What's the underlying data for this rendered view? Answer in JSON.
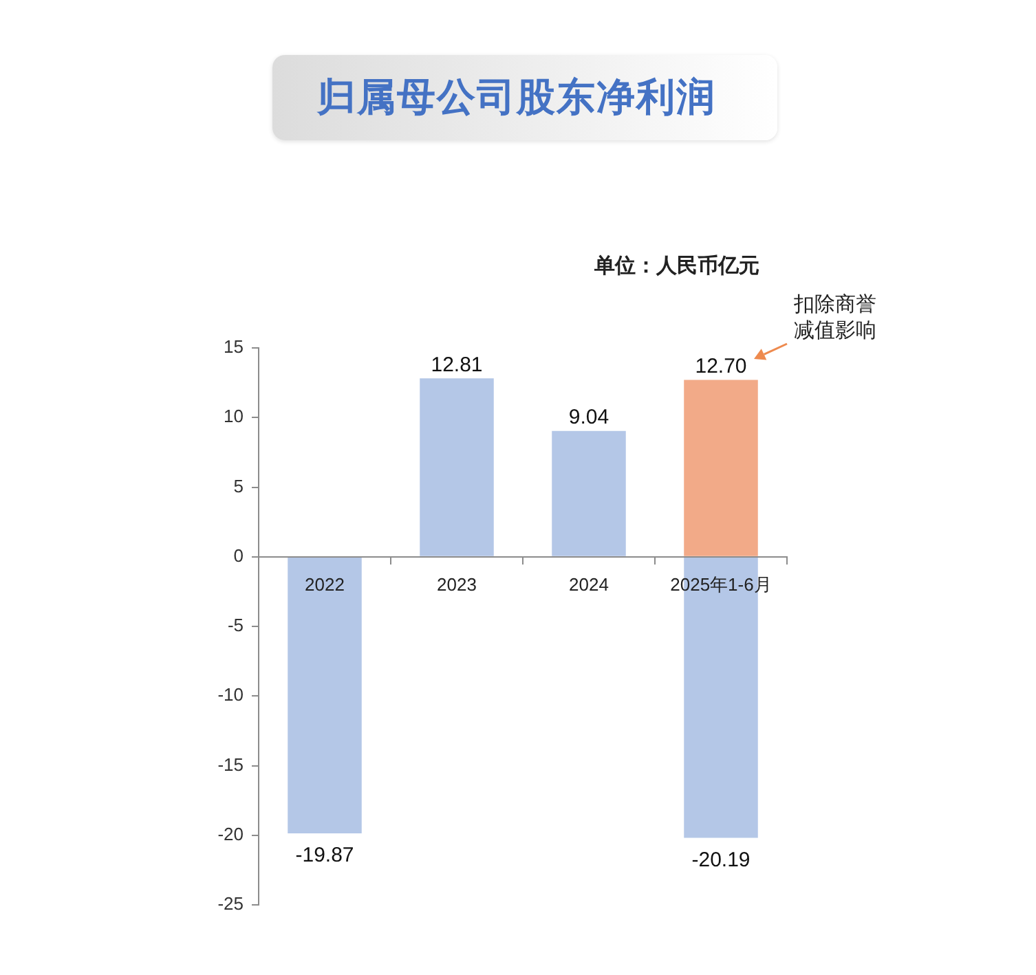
{
  "chart_data": {
    "type": "bar",
    "title": "归属母公司股东净利润",
    "categories": [
      "2022",
      "2023",
      "2024",
      "2025年1-6月"
    ],
    "series": [
      {
        "color": "#b4c7e7",
        "values": [
          -19.87,
          12.81,
          9.04,
          -20.19
        ],
        "value_labels": [
          "-19.87",
          "12.81",
          "9.04",
          "-20.19"
        ]
      },
      {
        "color": "#f2aa88",
        "values": [
          null,
          null,
          null,
          12.7
        ],
        "value_labels": [
          null,
          null,
          null,
          "12.70"
        ]
      }
    ],
    "stacked": true,
    "ylim": [
      -25,
      15
    ],
    "yticks": [
      -25,
      -20,
      -15,
      -10,
      -5,
      0,
      5,
      10,
      15
    ],
    "annotations": [
      "单位：人民币亿元",
      "扣除商誉减值影响"
    ]
  }
}
